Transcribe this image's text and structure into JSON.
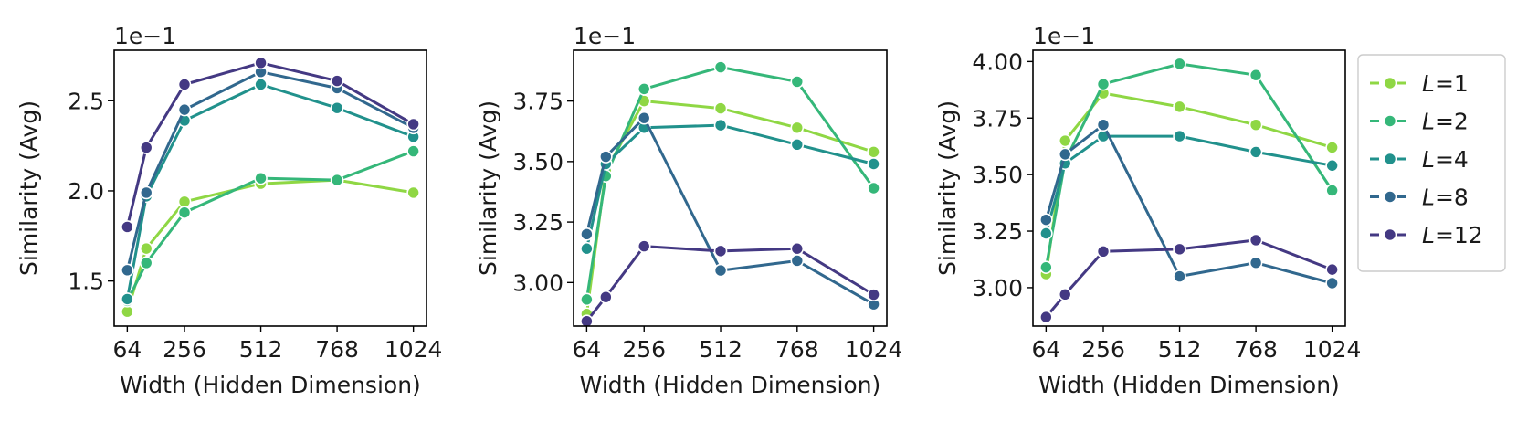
{
  "chart_data": [
    {
      "type": "line",
      "xlabel": "Width (Hidden Dimension)",
      "ylabel": "Similarity (Avg)",
      "offset_text": "1e−1",
      "x_ticks": [
        64,
        256,
        512,
        768,
        1024
      ],
      "y_ticks": [
        1.5,
        2.0,
        2.5
      ],
      "y_tick_labels": [
        "1.5",
        "2.0",
        "2.5"
      ],
      "xlim": [
        20,
        1068
      ],
      "ylim": [
        1.25,
        2.78
      ],
      "x": [
        64,
        128,
        256,
        512,
        768,
        1024
      ],
      "series": [
        {
          "name": "L=1",
          "color": "#8fd744",
          "values": [
            1.33,
            1.68,
            1.94,
            2.04,
            2.06,
            1.99
          ]
        },
        {
          "name": "L=2",
          "color": "#35b779",
          "values": [
            1.39,
            1.6,
            1.88,
            2.07,
            2.06,
            2.22
          ]
        },
        {
          "name": "L=4",
          "color": "#21918c",
          "values": [
            1.4,
            1.97,
            2.39,
            2.59,
            2.46,
            2.3
          ]
        },
        {
          "name": "L=8",
          "color": "#31688e",
          "values": [
            1.56,
            1.99,
            2.45,
            2.66,
            2.57,
            2.35
          ]
        },
        {
          "name": "L=12",
          "color": "#443983",
          "values": [
            1.8,
            2.24,
            2.59,
            2.71,
            2.61,
            2.37
          ]
        }
      ]
    },
    {
      "type": "line",
      "xlabel": "Width (Hidden Dimension)",
      "ylabel": "Similarity (Avg)",
      "offset_text": "1e−1",
      "x_ticks": [
        64,
        256,
        512,
        768,
        1024
      ],
      "y_ticks": [
        3.0,
        3.25,
        3.5,
        3.75
      ],
      "y_tick_labels": [
        "3.00",
        "3.25",
        "3.50",
        "3.75"
      ],
      "xlim": [
        20,
        1068
      ],
      "ylim": [
        2.82,
        3.96
      ],
      "x": [
        64,
        128,
        256,
        512,
        768,
        1024
      ],
      "series": [
        {
          "name": "L=1",
          "color": "#8fd744",
          "values": [
            2.87,
            3.46,
            3.75,
            3.72,
            3.64,
            3.54
          ]
        },
        {
          "name": "L=2",
          "color": "#35b779",
          "values": [
            2.93,
            3.44,
            3.8,
            3.89,
            3.83,
            3.39
          ]
        },
        {
          "name": "L=4",
          "color": "#21918c",
          "values": [
            3.14,
            3.49,
            3.64,
            3.65,
            3.57,
            3.49
          ]
        },
        {
          "name": "L=8",
          "color": "#31688e",
          "values": [
            3.2,
            3.52,
            3.68,
            3.05,
            3.09,
            2.91
          ]
        },
        {
          "name": "L=12",
          "color": "#443983",
          "values": [
            2.84,
            2.94,
            3.15,
            3.13,
            3.14,
            2.95
          ]
        }
      ]
    },
    {
      "type": "line",
      "xlabel": "Width (Hidden Dimension)",
      "ylabel": "Similarity (Avg)",
      "offset_text": "1e−1",
      "x_ticks": [
        64,
        256,
        512,
        768,
        1024
      ],
      "y_ticks": [
        3.0,
        3.25,
        3.5,
        3.75,
        4.0
      ],
      "y_tick_labels": [
        "3.00",
        "3.25",
        "3.50",
        "3.75",
        "4.00"
      ],
      "xlim": [
        20,
        1068
      ],
      "ylim": [
        2.83,
        4.05
      ],
      "x": [
        64,
        128,
        256,
        512,
        768,
        1024
      ],
      "series": [
        {
          "name": "L=1",
          "color": "#8fd744",
          "values": [
            3.06,
            3.65,
            3.86,
            3.8,
            3.72,
            3.62
          ]
        },
        {
          "name": "L=2",
          "color": "#35b779",
          "values": [
            3.09,
            3.56,
            3.9,
            3.99,
            3.94,
            3.43
          ]
        },
        {
          "name": "L=4",
          "color": "#21918c",
          "values": [
            3.24,
            3.55,
            3.67,
            3.67,
            3.6,
            3.54
          ]
        },
        {
          "name": "L=8",
          "color": "#31688e",
          "values": [
            3.3,
            3.59,
            3.72,
            3.05,
            3.11,
            3.02
          ]
        },
        {
          "name": "L=12",
          "color": "#443983",
          "values": [
            2.87,
            2.97,
            3.16,
            3.17,
            3.21,
            3.08
          ]
        }
      ]
    }
  ],
  "legend": {
    "location": "right",
    "entries": [
      {
        "prefix": "L",
        "suffix": "=1",
        "color": "#8fd744"
      },
      {
        "prefix": "L",
        "suffix": "=2",
        "color": "#35b779"
      },
      {
        "prefix": "L",
        "suffix": "=4",
        "color": "#21918c"
      },
      {
        "prefix": "L",
        "suffix": "=8",
        "color": "#31688e"
      },
      {
        "prefix": "L",
        "suffix": "=12",
        "color": "#443983"
      }
    ]
  }
}
